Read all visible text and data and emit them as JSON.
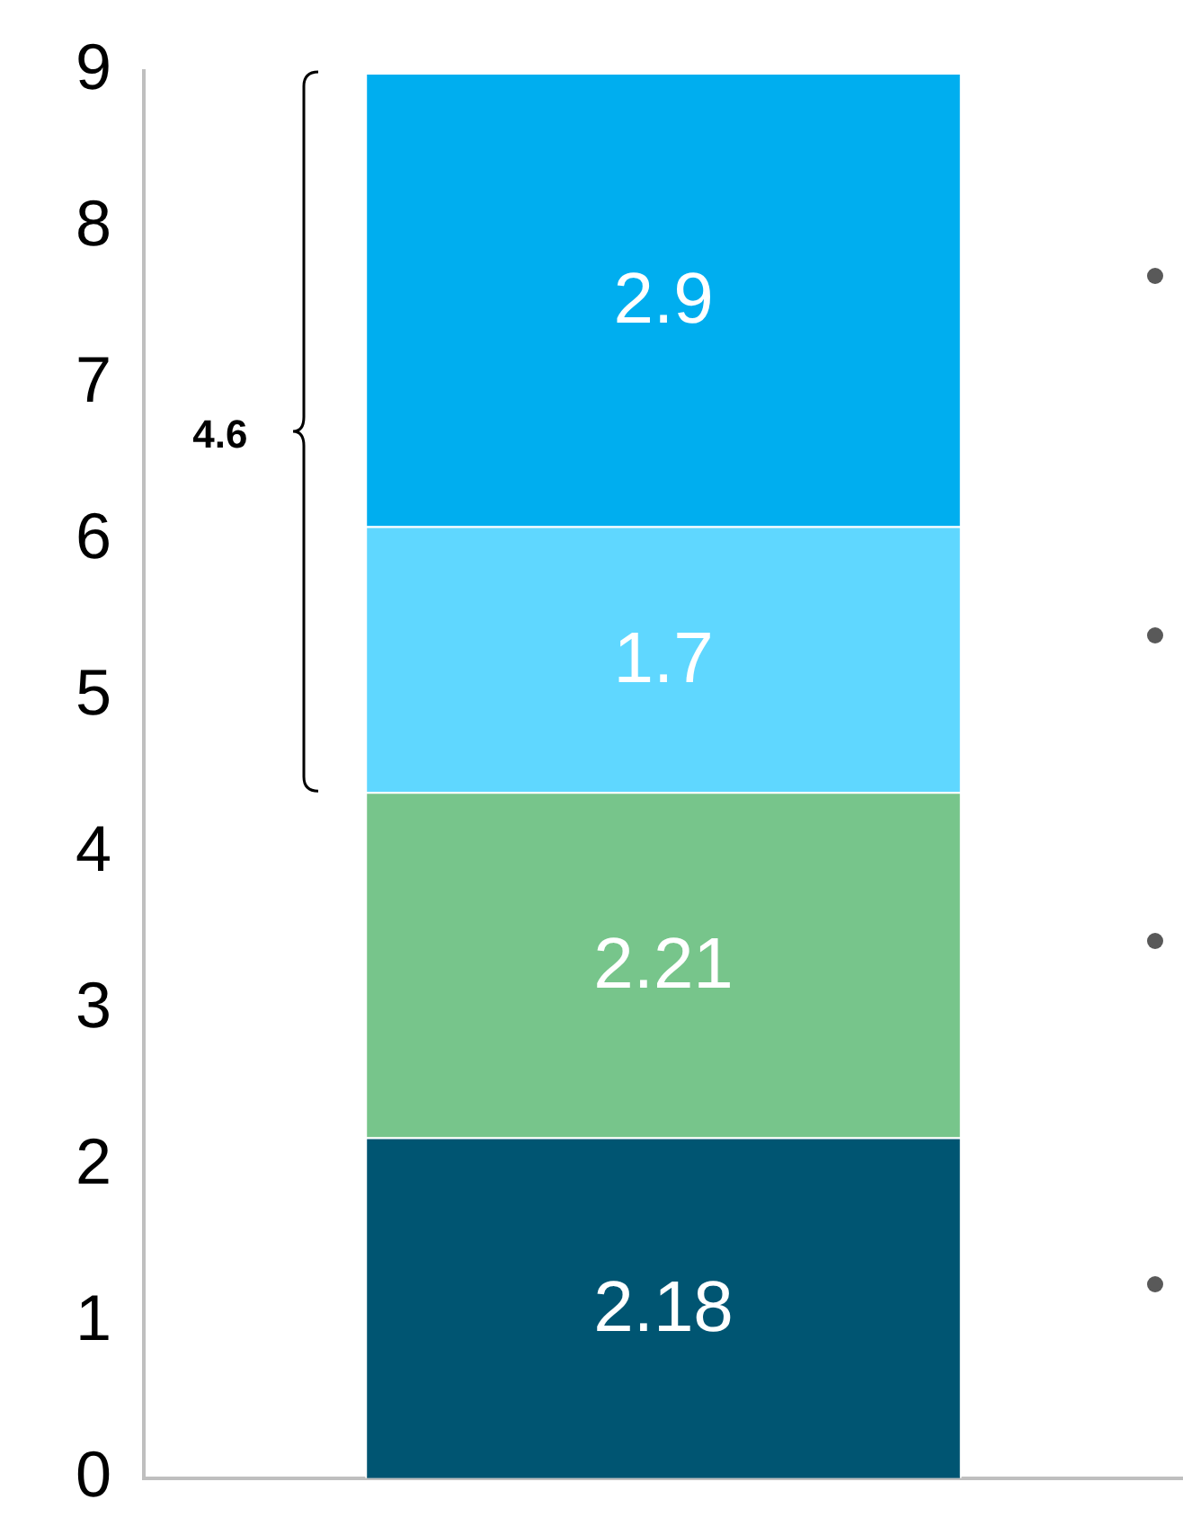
{
  "chart_data": {
    "type": "bar",
    "categories": [
      null
    ],
    "stacked": true,
    "series": [
      {
        "color": "#005572",
        "values": [
          2.18
        ]
      },
      {
        "color": "#77c58b",
        "values": [
          2.21
        ]
      },
      {
        "color": "#5fd7ff",
        "values": [
          1.7
        ]
      },
      {
        "color": "#00aeef",
        "values": [
          2.9
        ]
      }
    ],
    "ylim": [
      0,
      9
    ],
    "yticks": [
      0,
      1,
      2,
      3,
      4,
      5,
      6,
      7,
      8,
      9
    ],
    "grid": false,
    "legend": false,
    "data_labels": true,
    "annotations": [
      "4.6"
    ]
  }
}
